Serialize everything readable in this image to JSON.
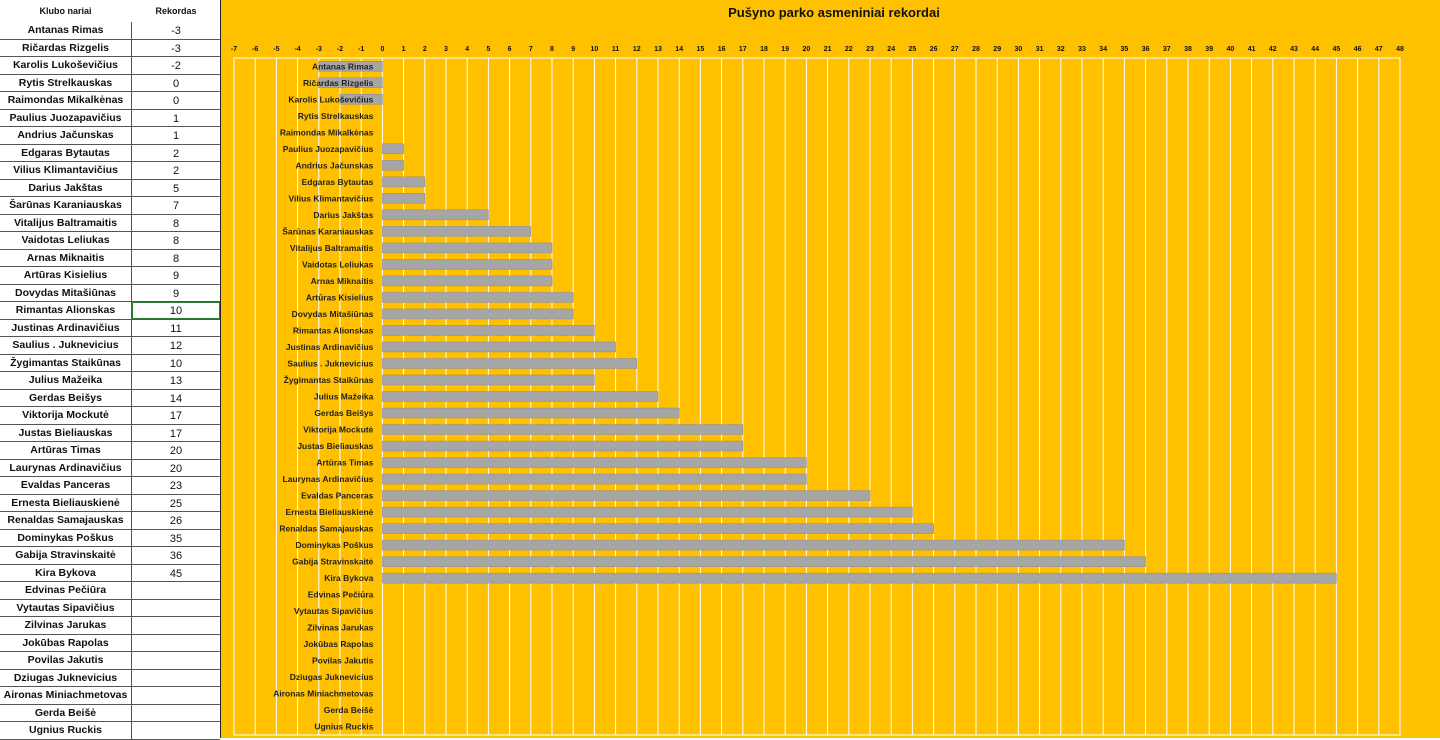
{
  "table": {
    "col_name": "Klubo nariai",
    "col_value": "Rekordas",
    "rows": [
      {
        "name": "Antanas Rimas",
        "value": "-3"
      },
      {
        "name": "Ričardas Rizgelis",
        "value": "-3"
      },
      {
        "name": "Karolis Lukoševičius",
        "value": "-2"
      },
      {
        "name": "Rytis Strelkauskas",
        "value": "0"
      },
      {
        "name": "Raimondas Mikalkėnas",
        "value": "0"
      },
      {
        "name": "Paulius Juozapavičius",
        "value": "1"
      },
      {
        "name": "Andrius Jačunskas",
        "value": "1"
      },
      {
        "name": "Edgaras Bytautas",
        "value": "2"
      },
      {
        "name": "Vilius Klimantavičius",
        "value": "2"
      },
      {
        "name": "Darius Jakštas",
        "value": "5"
      },
      {
        "name": "Šarūnas Karaniauskas",
        "value": "7"
      },
      {
        "name": "Vitalijus Baltramaitis",
        "value": "8"
      },
      {
        "name": "Vaidotas Leliukas",
        "value": "8"
      },
      {
        "name": "Arnas Miknaitis",
        "value": "8"
      },
      {
        "name": "Artūras Kisielius",
        "value": "9"
      },
      {
        "name": "Dovydas Mitašiūnas",
        "value": "9"
      },
      {
        "name": "Rimantas Alionskas",
        "value": "10"
      },
      {
        "name": "Justinas Ardinavičius",
        "value": "11"
      },
      {
        "name": "Saulius . Juknevicius",
        "value": "12"
      },
      {
        "name": "Žygimantas Staikūnas",
        "value": "10"
      },
      {
        "name": "Julius Mažeika",
        "value": "13"
      },
      {
        "name": "Gerdas Beišys",
        "value": "14"
      },
      {
        "name": "Viktorija Mockutė",
        "value": "17"
      },
      {
        "name": "Justas Bieliauskas",
        "value": "17"
      },
      {
        "name": "Artūras Timas",
        "value": "20"
      },
      {
        "name": "Laurynas Ardinavičius",
        "value": "20"
      },
      {
        "name": "Evaldas Panceras",
        "value": "23"
      },
      {
        "name": "Ernesta Bieliauskienė",
        "value": "25"
      },
      {
        "name": "Renaldas Samajauskas",
        "value": "26"
      },
      {
        "name": "Dominykas Poškus",
        "value": "35"
      },
      {
        "name": "Gabija Stravinskaitė",
        "value": "36"
      },
      {
        "name": "Kira Bykova",
        "value": "45"
      },
      {
        "name": "Edvinas Pečiūra",
        "value": ""
      },
      {
        "name": "Vytautas Sipavičius",
        "value": ""
      },
      {
        "name": "Zilvinas Jarukas",
        "value": ""
      },
      {
        "name": "Jokūbas Rapolas",
        "value": ""
      },
      {
        "name": "Povilas Jakutis",
        "value": ""
      },
      {
        "name": "Dziugas Juknevicius",
        "value": ""
      },
      {
        "name": "Aironas Miniachmetovas",
        "value": ""
      },
      {
        "name": "Gerda Beišė",
        "value": ""
      },
      {
        "name": "Ugnius Ruckis",
        "value": ""
      }
    ]
  },
  "chart_data": {
    "type": "bar",
    "orientation": "horizontal",
    "title": "Pušyno parko asmeniniai rekordai",
    "xlim": [
      -7,
      48
    ],
    "x_ticks": [
      "-7",
      "-6",
      "-5",
      "-4",
      "-3",
      "-2",
      "-1",
      "0",
      "1",
      "2",
      "3",
      "4",
      "5",
      "6",
      "7",
      "8",
      "9",
      "10",
      "11",
      "12",
      "13",
      "14",
      "15",
      "16",
      "17",
      "18",
      "19",
      "20",
      "21",
      "22",
      "23",
      "24",
      "25",
      "26",
      "27",
      "28",
      "29",
      "30",
      "31",
      "32",
      "33",
      "34",
      "35",
      "36",
      "37",
      "38",
      "39",
      "40",
      "41",
      "42",
      "43",
      "44",
      "45",
      "46",
      "47",
      "48"
    ],
    "grid": true,
    "categories": [
      "Antanas Rimas",
      "Ričardas Rizgelis",
      "Karolis Lukoševičius",
      "Rytis Strelkauskas",
      "Raimondas Mikalkėnas",
      "Paulius Juozapavičius",
      "Andrius Jačunskas",
      "Edgaras Bytautas",
      "Vilius Klimantavičius",
      "Darius Jakštas",
      "Šarūnas Karaniauskas",
      "Vitalijus Baltramaitis",
      "Vaidotas Leliukas",
      "Arnas Miknaitis",
      "Artūras Kisielius",
      "Dovydas Mitašiūnas",
      "Rimantas Alionskas",
      "Justinas Ardinavičius",
      "Saulius . Juknevicius",
      "Žygimantas Staikūnas",
      "Julius Mažeika",
      "Gerdas Beišys",
      "Viktorija Mockutė",
      "Justas Bieliauskas",
      "Artūras Timas",
      "Laurynas Ardinavičius",
      "Evaldas Panceras",
      "Ernesta Bieliauskienė",
      "Renaldas Samajauskas",
      "Dominykas Poškus",
      "Gabija Stravinskaitė",
      "Kira Bykova",
      "Edvinas Pečiūra",
      "Vytautas Sipavičius",
      "Zilvinas Jarukas",
      "Jokūbas Rapolas",
      "Povilas Jakutis",
      "Dziugas Juknevicius",
      "Aironas Miniachmetovas",
      "Gerda Beišė",
      "Ugnius Ruckis"
    ],
    "values": [
      -3,
      -3,
      -2,
      0,
      0,
      1,
      1,
      2,
      2,
      5,
      7,
      8,
      8,
      8,
      9,
      9,
      10,
      11,
      12,
      10,
      13,
      14,
      17,
      17,
      20,
      20,
      23,
      25,
      26,
      35,
      36,
      45,
      null,
      null,
      null,
      null,
      null,
      null,
      null,
      null,
      null
    ],
    "colors": {
      "background": "#ffc000",
      "bar": "#a6a6a6",
      "grid": "#ffffff"
    }
  }
}
